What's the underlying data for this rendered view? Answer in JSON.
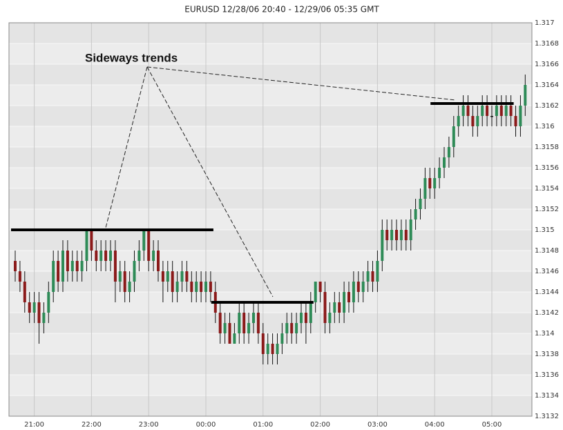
{
  "chart_data": {
    "type": "candlestick",
    "title": "EURUSD 12/28/06 20:40 - 12/29/06 05:35 GMT",
    "up_color": "#2e8b57",
    "down_color": "#8b1a1a",
    "doji_color": "#111111",
    "grid": true,
    "ylim": [
      1.3132,
      1.317
    ],
    "yticks": [
      1.3132,
      1.3134,
      1.3136,
      1.3138,
      1.314,
      1.3142,
      1.3144,
      1.3146,
      1.3148,
      1.315,
      1.3152,
      1.3154,
      1.3156,
      1.3158,
      1.316,
      1.3162,
      1.3164,
      1.3166,
      1.3168,
      1.317
    ],
    "xticks": [
      {
        "value": 4,
        "label": "21:00"
      },
      {
        "value": 16,
        "label": "22:00"
      },
      {
        "value": 28,
        "label": "23:00"
      },
      {
        "value": 40,
        "label": "00:00"
      },
      {
        "value": 52,
        "label": "01:00"
      },
      {
        "value": 64,
        "label": "02:00"
      },
      {
        "value": 76,
        "label": "03:00"
      },
      {
        "value": 88,
        "label": "04:00"
      },
      {
        "value": 100,
        "label": "05:00"
      }
    ],
    "open": [
      1.3147,
      1.3146,
      1.3145,
      1.3143,
      1.3142,
      1.3143,
      1.3141,
      1.3142,
      1.3144,
      1.3147,
      1.3145,
      1.3148,
      1.3146,
      1.3147,
      1.3146,
      1.3147,
      1.315,
      1.3148,
      1.3147,
      1.3148,
      1.3147,
      1.3148,
      1.3145,
      1.3146,
      1.3144,
      1.3145,
      1.3147,
      1.3148,
      1.315,
      1.3147,
      1.3148,
      1.3146,
      1.3145,
      1.3146,
      1.3144,
      1.3145,
      1.3146,
      1.3145,
      1.3144,
      1.3145,
      1.3144,
      1.3145,
      1.3144,
      1.3142,
      1.314,
      1.3141,
      1.3139,
      1.314,
      1.3142,
      1.314,
      1.3141,
      1.3142,
      1.314,
      1.3138,
      1.3139,
      1.3138,
      1.3139,
      1.314,
      1.3141,
      1.314,
      1.3141,
      1.3142,
      1.3141,
      1.3143,
      1.3145,
      1.3144,
      1.3141,
      1.3142,
      1.3143,
      1.3142,
      1.3144,
      1.3143,
      1.3145,
      1.3144,
      1.3145,
      1.3146,
      1.3145,
      1.3147,
      1.315,
      1.3149,
      1.315,
      1.3149,
      1.315,
      1.3149,
      1.3151,
      1.3152,
      1.3153,
      1.3155,
      1.3154,
      1.3155,
      1.3156,
      1.3157,
      1.3158,
      1.316,
      1.3161,
      1.3162,
      1.3161,
      1.316,
      1.3161,
      1.3162,
      1.3161,
      1.3161,
      1.3162,
      1.3161,
      1.3162,
      1.3161,
      1.316,
      1.3162
    ],
    "high": [
      1.3148,
      1.3147,
      1.3146,
      1.3144,
      1.3144,
      1.3144,
      1.3143,
      1.3145,
      1.3148,
      1.3148,
      1.3149,
      1.3149,
      1.3148,
      1.3148,
      1.3148,
      1.315,
      1.315,
      1.3149,
      1.3149,
      1.3149,
      1.3149,
      1.3149,
      1.3147,
      1.3147,
      1.3146,
      1.3148,
      1.3149,
      1.315,
      1.315,
      1.3149,
      1.3149,
      1.3147,
      1.3147,
      1.3147,
      1.3146,
      1.3147,
      1.3147,
      1.3146,
      1.3146,
      1.3146,
      1.3146,
      1.3146,
      1.3145,
      1.3143,
      1.3142,
      1.3142,
      1.3141,
      1.3143,
      1.3143,
      1.3142,
      1.3143,
      1.3143,
      1.3141,
      1.314,
      1.314,
      1.314,
      1.3141,
      1.3142,
      1.3142,
      1.3142,
      1.3143,
      1.3143,
      1.3144,
      1.3145,
      1.3145,
      1.3145,
      1.3143,
      1.3144,
      1.3144,
      1.3145,
      1.3145,
      1.3146,
      1.3146,
      1.3146,
      1.3147,
      1.3147,
      1.3148,
      1.3151,
      1.3151,
      1.3151,
      1.3151,
      1.3151,
      1.3151,
      1.3152,
      1.3153,
      1.3154,
      1.3156,
      1.3156,
      1.3156,
      1.3157,
      1.3158,
      1.3159,
      1.3161,
      1.3162,
      1.3163,
      1.3163,
      1.3162,
      1.3162,
      1.3163,
      1.3163,
      1.3162,
      1.3163,
      1.3163,
      1.3163,
      1.3163,
      1.3162,
      1.3163,
      1.3165
    ],
    "low": [
      1.3145,
      1.3144,
      1.3142,
      1.3141,
      1.3141,
      1.3139,
      1.314,
      1.3141,
      1.3143,
      1.3144,
      1.3144,
      1.3145,
      1.3145,
      1.3145,
      1.3145,
      1.3146,
      1.3147,
      1.3146,
      1.3146,
      1.3146,
      1.3146,
      1.3143,
      1.3144,
      1.3143,
      1.3143,
      1.3144,
      1.3146,
      1.3147,
      1.3146,
      1.3146,
      1.3145,
      1.3143,
      1.3144,
      1.3143,
      1.3143,
      1.3144,
      1.3144,
      1.3143,
      1.3143,
      1.3143,
      1.3143,
      1.3143,
      1.3141,
      1.3139,
      1.3139,
      1.3139,
      1.3139,
      1.3139,
      1.3139,
      1.3139,
      1.314,
      1.3139,
      1.3137,
      1.3137,
      1.3137,
      1.3137,
      1.3138,
      1.3139,
      1.3139,
      1.3139,
      1.314,
      1.3139,
      1.314,
      1.3142,
      1.3143,
      1.314,
      1.314,
      1.3141,
      1.3141,
      1.3141,
      1.3142,
      1.3142,
      1.3143,
      1.3143,
      1.3144,
      1.3144,
      1.3144,
      1.3146,
      1.3148,
      1.3148,
      1.3148,
      1.3148,
      1.3148,
      1.3148,
      1.315,
      1.3151,
      1.3152,
      1.3153,
      1.3153,
      1.3154,
      1.3155,
      1.3156,
      1.3157,
      1.3159,
      1.316,
      1.316,
      1.3159,
      1.3159,
      1.316,
      1.316,
      1.316,
      1.316,
      1.316,
      1.316,
      1.316,
      1.3159,
      1.3159,
      1.3161
    ],
    "close": [
      1.3146,
      1.3145,
      1.3143,
      1.3142,
      1.3143,
      1.3141,
      1.3142,
      1.3144,
      1.3147,
      1.3145,
      1.3148,
      1.3146,
      1.3147,
      1.3146,
      1.3147,
      1.315,
      1.3148,
      1.3147,
      1.3148,
      1.3147,
      1.3148,
      1.3145,
      1.3146,
      1.3144,
      1.3145,
      1.3147,
      1.3148,
      1.315,
      1.3147,
      1.3148,
      1.3146,
      1.3145,
      1.3146,
      1.3144,
      1.3145,
      1.3146,
      1.3145,
      1.3144,
      1.3145,
      1.3144,
      1.3145,
      1.3144,
      1.3142,
      1.314,
      1.3141,
      1.3139,
      1.314,
      1.3142,
      1.314,
      1.3141,
      1.3142,
      1.314,
      1.3138,
      1.3139,
      1.3138,
      1.3139,
      1.314,
      1.3141,
      1.314,
      1.3141,
      1.3142,
      1.3141,
      1.3143,
      1.3145,
      1.3144,
      1.3141,
      1.3142,
      1.3143,
      1.3142,
      1.3144,
      1.3143,
      1.3145,
      1.3144,
      1.3145,
      1.3146,
      1.3145,
      1.3147,
      1.315,
      1.3149,
      1.315,
      1.3149,
      1.315,
      1.3149,
      1.3151,
      1.3152,
      1.3153,
      1.3155,
      1.3154,
      1.3155,
      1.3156,
      1.3157,
      1.3158,
      1.316,
      1.3161,
      1.3162,
      1.3161,
      1.316,
      1.3161,
      1.3162,
      1.3161,
      1.3161,
      1.3162,
      1.3161,
      1.3162,
      1.3161,
      1.316,
      1.3162,
      1.3164
    ],
    "annotation": "Sideways trends",
    "levels": [
      {
        "y": 1.315,
        "x": [
          0,
          41
        ]
      },
      {
        "y": 1.3143,
        "x": [
          42,
          62
        ]
      },
      {
        "y": 1.31622,
        "x": [
          88,
          104
        ]
      }
    ]
  }
}
